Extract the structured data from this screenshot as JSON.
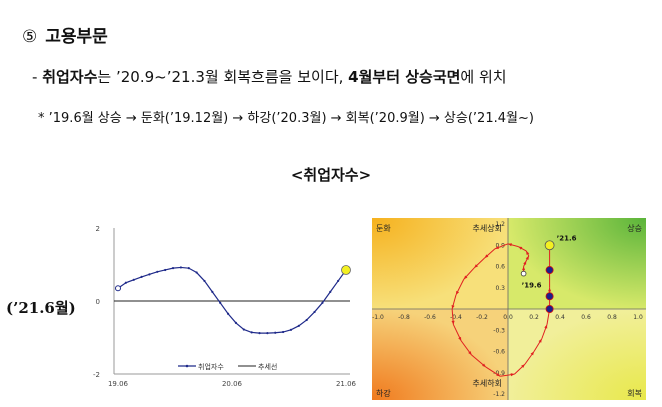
{
  "heading": {
    "number": "⑤",
    "title": "고용부문"
  },
  "summary": {
    "bullet": "-",
    "bold1": "취업자수",
    "text1": "는 ’20.9~’21.3월 회복흐름을 보이다, ",
    "bold2": "4월부터 상승국면",
    "text2": "에 위치"
  },
  "note": "* ’19.6월 상승 → 둔화(’19.12월) → 하강(’20.3월) → 회복(’20.9월) → 상승(’21.4월~)",
  "chart_title": "<취업자수>",
  "side_label": "(’21.6월)",
  "colors": {
    "series": "#1f2a8a",
    "trend": "#222222",
    "highlight": "#f3f022",
    "quad_arrow": "#e02020"
  },
  "chart_data": [
    {
      "type": "line",
      "y_ticks": [
        "2",
        "0",
        "-2"
      ],
      "ylim": [
        -2,
        2
      ],
      "x_ticks": [
        "19.06",
        "20.06",
        "21.06"
      ],
      "series": [
        {
          "name": "취업자수",
          "values": [
            0.35,
            0.5,
            0.58,
            0.66,
            0.73,
            0.8,
            0.85,
            0.9,
            0.92,
            0.9,
            0.78,
            0.55,
            0.25,
            -0.05,
            -0.35,
            -0.6,
            -0.78,
            -0.86,
            -0.88,
            -0.88,
            -0.87,
            -0.85,
            -0.79,
            -0.68,
            -0.52,
            -0.3,
            -0.05,
            0.25,
            0.55,
            0.85
          ]
        },
        {
          "name": "추세선",
          "values": [
            0,
            0
          ]
        }
      ]
    },
    {
      "type": "scatter",
      "xlim": [
        -1,
        1
      ],
      "ylim": [
        -1.2,
        1.2
      ],
      "x_ticks": [
        "-1.0",
        "-0.8",
        "-0.6",
        "-0.4",
        "-0.2",
        "0.0",
        "0.2",
        "0.4",
        "0.6",
        "0.8",
        "1.0"
      ],
      "y_ticks": [
        "1.2",
        "0.9",
        "0.6",
        "0.3",
        "0",
        "-0.3",
        "-0.6",
        "-0.9",
        "-1.2"
      ],
      "quadrants": {
        "top_left": "둔화",
        "top_right": "상승",
        "bottom_left": "하강",
        "bottom_right": "회복"
      },
      "axis_annotations": {
        "top": "추세상회",
        "bottom": "추세하회"
      },
      "point_labels": {
        "start": "’19.6",
        "end": "’21.6"
      },
      "path": [
        [
          0.12,
          0.5
        ],
        [
          0.12,
          0.6
        ],
        [
          0.14,
          0.68
        ],
        [
          0.16,
          0.75
        ],
        [
          0.14,
          0.82
        ],
        [
          0.08,
          0.88
        ],
        [
          0.0,
          0.92
        ],
        [
          -0.1,
          0.85
        ],
        [
          -0.18,
          0.72
        ],
        [
          -0.26,
          0.58
        ],
        [
          -0.34,
          0.42
        ],
        [
          -0.4,
          0.2
        ],
        [
          -0.43,
          0.0
        ],
        [
          -0.42,
          -0.22
        ],
        [
          -0.36,
          -0.45
        ],
        [
          -0.28,
          -0.65
        ],
        [
          -0.17,
          -0.82
        ],
        [
          -0.06,
          -0.95
        ],
        [
          0.05,
          -0.92
        ],
        [
          0.13,
          -0.78
        ],
        [
          0.2,
          -0.6
        ],
        [
          0.26,
          -0.42
        ],
        [
          0.3,
          -0.22
        ],
        [
          0.32,
          0.0
        ],
        [
          0.32,
          0.18
        ],
        [
          0.32,
          0.3
        ],
        [
          0.32,
          0.55
        ],
        [
          0.32,
          0.9
        ]
      ],
      "markers": [
        [
          0.32,
          0.0
        ],
        [
          0.32,
          0.18
        ],
        [
          0.32,
          0.55
        ]
      ]
    }
  ]
}
